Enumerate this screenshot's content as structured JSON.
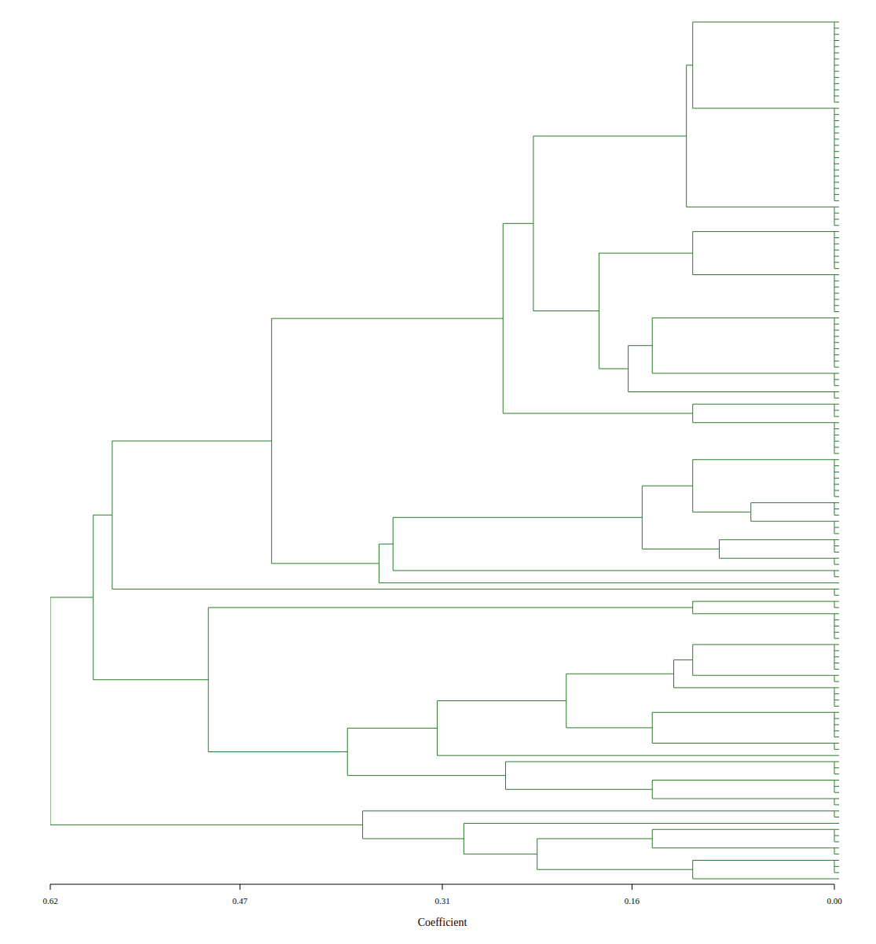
{
  "chart_data": {
    "type": "dendrogram",
    "x_label": "Coefficient",
    "color": "#2a7a2a",
    "xlim": [
      0.62,
      0
    ],
    "xticks": [
      0.62,
      0.47,
      0.31,
      0.16,
      {
        "value": 0,
        "label": "0.00"
      }
    ],
    "tree": {
      "height": 0.62,
      "children": [
        {
          "height": 0.586,
          "children": [
            {
              "height": 0.571,
              "children": [
                {
                  "height": 0.445,
                  "children": [
                    {
                      "height": 0.262,
                      "children": [
                        {
                          "height": 0.238,
                          "children": [
                            {
                              "height": 0.117,
                              "children": [
                                {
                                  "height": 0.112,
                                  "children": [
                                    {
                                      "size": 14
                                    },
                                    {
                                      "size": 16
                                    }
                                  ]
                                },
                                {
                                  "size": 4
                                }
                              ]
                            },
                            {
                              "height": 0.186,
                              "children": [
                                {
                                  "height": 0.112,
                                  "children": [
                                    {
                                      "size": 7
                                    },
                                    {
                                      "size": 7
                                    }
                                  ]
                                },
                                {
                                  "height": 0.163,
                                  "children": [
                                    {
                                      "height": 0.144,
                                      "children": [
                                        {
                                          "size": 9
                                        },
                                        {
                                          "size": 3
                                        }
                                      ]
                                    },
                                    {
                                      "size": 2
                                    }
                                  ]
                                }
                              ]
                            }
                          ]
                        },
                        {
                          "height": 0.112,
                          "children": [
                            {
                              "size": 3
                            },
                            {
                              "size": 6
                            }
                          ]
                        }
                      ]
                    },
                    {
                      "height": 0.36,
                      "children": [
                        {
                          "height": 0.349,
                          "children": [
                            {
                              "height": 0.152,
                              "children": [
                                {
                                  "height": 0.112,
                                  "children": [
                                    {
                                      "size": 7
                                    },
                                    {
                                      "height": 0.066,
                                      "children": [
                                        {
                                          "size": 3
                                        },
                                        {
                                          "size": 3
                                        }
                                      ]
                                    }
                                  ]
                                },
                                {
                                  "height": 0.091,
                                  "children": [
                                    {
                                      "size": 3
                                    },
                                    {
                                      "size": 2
                                    }
                                  ]
                                }
                              ]
                            },
                            {
                              "size": 2
                            }
                          ]
                        },
                        {
                          "size": 1
                        }
                      ]
                    }
                  ]
                },
                {
                  "size": 2
                }
              ]
            },
            {
              "height": 0.495,
              "children": [
                {
                  "height": 0.112,
                  "children": [
                    {
                      "size": 2
                    },
                    {
                      "size": 5
                    }
                  ]
                },
                {
                  "height": 0.385,
                  "children": [
                    {
                      "height": 0.314,
                      "children": [
                        {
                          "height": 0.212,
                          "children": [
                            {
                              "height": 0.127,
                              "children": [
                                {
                                  "height": 0.112,
                                  "children": [
                                    {
                                      "size": 5
                                    },
                                    {
                                      "size": 2
                                    }
                                  ]
                                },
                                {
                                  "size": 4
                                }
                              ]
                            },
                            {
                              "height": 0.144,
                              "children": [
                                {
                                  "size": 5
                                },
                                {
                                  "size": 2
                                }
                              ]
                            }
                          ]
                        },
                        {
                          "size": 1
                        }
                      ]
                    },
                    {
                      "height": 0.26,
                      "children": [
                        {
                          "size": 3
                        },
                        {
                          "height": 0.144,
                          "children": [
                            {
                              "size": 3
                            },
                            {
                              "size": 2
                            }
                          ]
                        }
                      ]
                    }
                  ]
                }
              ]
            }
          ]
        },
        {
          "height": 0.373,
          "children": [
            {
              "size": 2
            },
            {
              "height": 0.293,
              "children": [
                {
                  "size": 1
                },
                {
                  "height": 0.235,
                  "children": [
                    {
                      "height": 0.144,
                      "children": [
                        {
                          "size": 3
                        },
                        {
                          "size": 2
                        }
                      ]
                    },
                    {
                      "height": 0.112,
                      "children": [
                        {
                          "size": 3
                        },
                        {
                          "size": 1
                        }
                      ]
                    }
                  ]
                }
              ]
            }
          ]
        }
      ]
    }
  }
}
